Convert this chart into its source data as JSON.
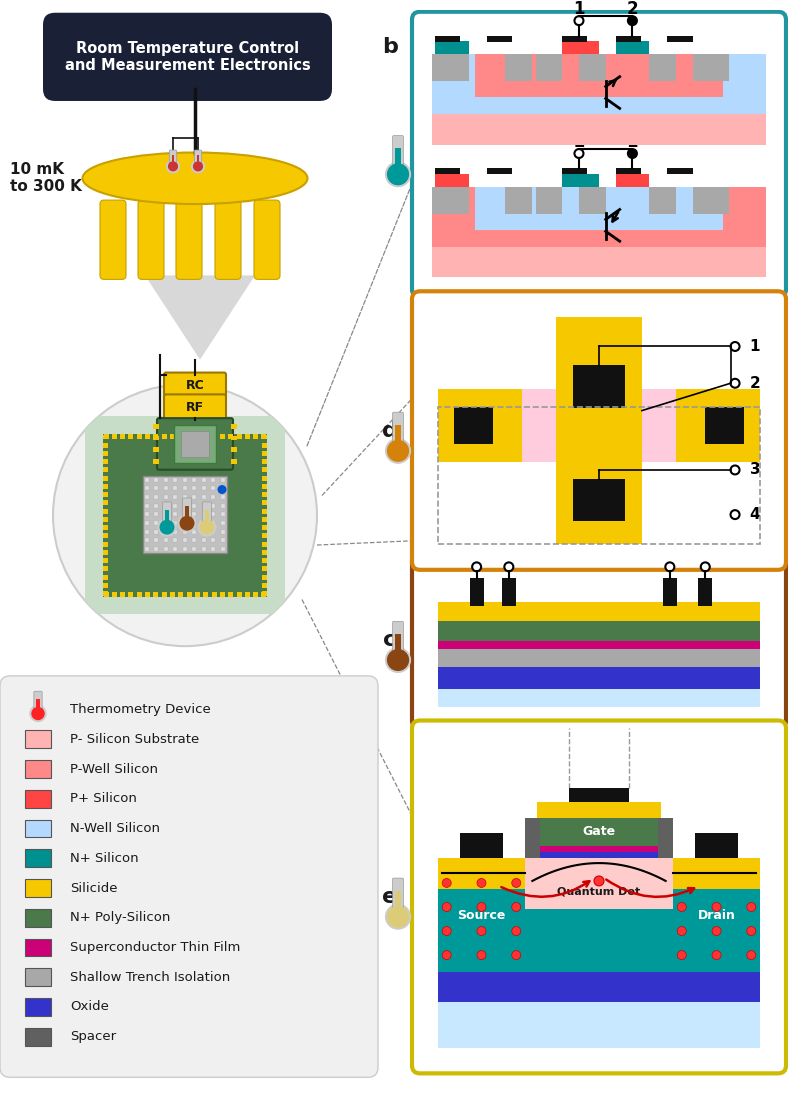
{
  "fig_width": 7.88,
  "fig_height": 11.15,
  "bg_color": "#ffffff",
  "title_box_color": "#1a2035",
  "title_text": "Room Temperature Control\nand Measurement Electronics",
  "title_text_color": "#ffffff",
  "temp_label": "10 mK\nto 300 K",
  "yellow_color": "#f5c800",
  "dark_green": "#3d5a3e",
  "light_green": "#c8ddc8",
  "pcb_color": "#4a7a4a",
  "colors": {
    "p_minus_si": "#ffb3b3",
    "p_well": "#ff8888",
    "p_plus": "#ff4444",
    "n_well": "#b3d9ff",
    "n_well_light": "#d0eeff",
    "n_plus": "#009090",
    "silicide": "#f5c800",
    "n_plus_poly": "#4a7a4a",
    "superconductor": "#cc0077",
    "sti": "#a8a8a8",
    "oxide": "#3333cc",
    "oxide_light": "#c8e8ff",
    "spacer": "#606060",
    "contacts": "#111111",
    "teal": "#009999"
  },
  "legend_items": [
    {
      "label": "Thermometry Device",
      "type": "thermometer",
      "color": "#ff2222"
    },
    {
      "label": "P- Silicon Substrate",
      "type": "rect",
      "color": "#ffb3b3"
    },
    {
      "label": "P-Well Silicon",
      "type": "rect",
      "color": "#ff8888"
    },
    {
      "label": "P+ Silicon",
      "type": "rect",
      "color": "#ff4444"
    },
    {
      "label": "N-Well Silicon",
      "type": "rect",
      "color": "#b3d9ff"
    },
    {
      "label": "N+ Silicon",
      "type": "rect",
      "color": "#009090"
    },
    {
      "label": "Silicide",
      "type": "rect",
      "color": "#f5c800"
    },
    {
      "label": "N+ Poly-Silicon",
      "type": "rect",
      "color": "#4a7a4a"
    },
    {
      "label": "Superconductor Thin Film",
      "type": "rect",
      "color": "#cc0077"
    },
    {
      "label": "Shallow Trench Isolation",
      "type": "rect",
      "color": "#a8a8a8"
    },
    {
      "label": "Oxide",
      "type": "rect",
      "color": "#3333cc"
    },
    {
      "label": "Spacer",
      "type": "rect",
      "color": "#606060"
    }
  ],
  "box_colors": {
    "b": "#2196a0",
    "c": "#8B4513",
    "d": "#d4820a",
    "e": "#ccbb00"
  }
}
